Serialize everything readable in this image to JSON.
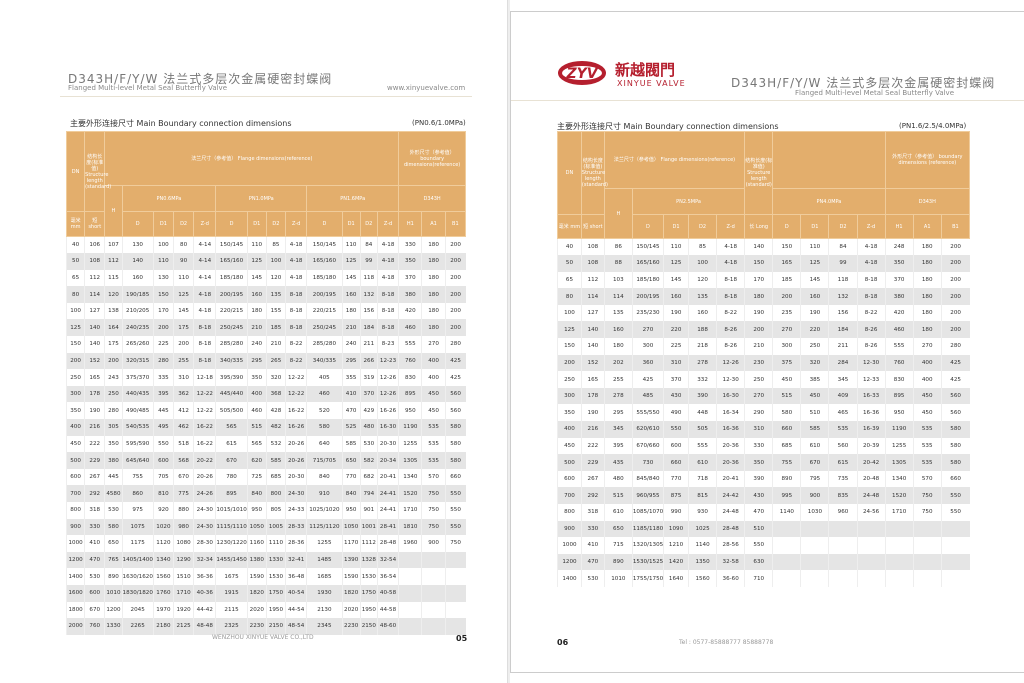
{
  "left": {
    "title": "D343H/F/Y/W 法兰式多层次金属硬密封蝶阀",
    "subtitle": "Flanged Multi-level Metal Seal Butterfly Valve",
    "website": "www.xinyuevalve.com",
    "section_title": "主要外形连接尺寸 Main Boundary connection dimensions",
    "pressure": "(PN0.6/1.0MPa)",
    "header": {
      "dn": "DN",
      "struct": "结构长度(标准值) Structure length (standard)",
      "flange": "法兰尺寸（参考值） Flange dimensions(reference)",
      "boundary": "外形尺寸（参考值） boundary dimensions(reference)",
      "h": "H",
      "pn1": "PN0.6MPa",
      "pn2": "PN1.0MPa",
      "pn3": "PN1.6MPa",
      "model": "D343H",
      "mm": "毫米 mm",
      "short": "短 short",
      "cols": [
        "D",
        "D1",
        "D2",
        "Z-d",
        "D",
        "D1",
        "D2",
        "Z-d",
        "D",
        "D1",
        "D2",
        "Z-d",
        "H1",
        "A1",
        "B1"
      ]
    },
    "rows": [
      [
        "40",
        "106",
        "107",
        "130",
        "100",
        "80",
        "4-14",
        "150/145",
        "110",
        "85",
        "4-18",
        "150/145",
        "110",
        "84",
        "4-18",
        "330",
        "180",
        "200"
      ],
      [
        "50",
        "108",
        "112",
        "140",
        "110",
        "90",
        "4-14",
        "165/160",
        "125",
        "100",
        "4-18",
        "165/160",
        "125",
        "99",
        "4-18",
        "350",
        "180",
        "200"
      ],
      [
        "65",
        "112",
        "115",
        "160",
        "130",
        "110",
        "4-14",
        "185/180",
        "145",
        "120",
        "4-18",
        "185/180",
        "145",
        "118",
        "4-18",
        "370",
        "180",
        "200"
      ],
      [
        "80",
        "114",
        "120",
        "190/185",
        "150",
        "125",
        "4-18",
        "200/195",
        "160",
        "135",
        "8-18",
        "200/195",
        "160",
        "132",
        "8-18",
        "380",
        "180",
        "200"
      ],
      [
        "100",
        "127",
        "138",
        "210/205",
        "170",
        "145",
        "4-18",
        "220/215",
        "180",
        "155",
        "8-18",
        "220/215",
        "180",
        "156",
        "8-18",
        "420",
        "180",
        "200"
      ],
      [
        "125",
        "140",
        "164",
        "240/235",
        "200",
        "175",
        "8-18",
        "250/245",
        "210",
        "185",
        "8-18",
        "250/245",
        "210",
        "184",
        "8-18",
        "460",
        "180",
        "200"
      ],
      [
        "150",
        "140",
        "175",
        "265/260",
        "225",
        "200",
        "8-18",
        "285/280",
        "240",
        "210",
        "8-22",
        "285/280",
        "240",
        "211",
        "8-23",
        "555",
        "270",
        "280"
      ],
      [
        "200",
        "152",
        "200",
        "320/315",
        "280",
        "255",
        "8-18",
        "340/335",
        "295",
        "265",
        "8-22",
        "340/335",
        "295",
        "266",
        "12-23",
        "760",
        "400",
        "425"
      ],
      [
        "250",
        "165",
        "243",
        "375/370",
        "335",
        "310",
        "12-18",
        "395/390",
        "350",
        "320",
        "12-22",
        "405",
        "355",
        "319",
        "12-26",
        "830",
        "400",
        "425"
      ],
      [
        "300",
        "178",
        "250",
        "440/435",
        "395",
        "362",
        "12-22",
        "445/440",
        "400",
        "368",
        "12-22",
        "460",
        "410",
        "370",
        "12-26",
        "895",
        "450",
        "560"
      ],
      [
        "350",
        "190",
        "280",
        "490/485",
        "445",
        "412",
        "12-22",
        "505/500",
        "460",
        "428",
        "16-22",
        "520",
        "470",
        "429",
        "16-26",
        "950",
        "450",
        "560"
      ],
      [
        "400",
        "216",
        "305",
        "540/535",
        "495",
        "462",
        "16-22",
        "565",
        "515",
        "482",
        "16-26",
        "580",
        "525",
        "480",
        "16-30",
        "1190",
        "535",
        "580"
      ],
      [
        "450",
        "222",
        "350",
        "595/590",
        "550",
        "518",
        "16-22",
        "615",
        "565",
        "532",
        "20-26",
        "640",
        "585",
        "530",
        "20-30",
        "1255",
        "535",
        "580"
      ],
      [
        "500",
        "229",
        "380",
        "645/640",
        "600",
        "568",
        "20-22",
        "670",
        "620",
        "585",
        "20-26",
        "715/705",
        "650",
        "582",
        "20-34",
        "1305",
        "535",
        "580"
      ],
      [
        "600",
        "267",
        "445",
        "755",
        "705",
        "670",
        "20-26",
        "780",
        "725",
        "685",
        "20-30",
        "840",
        "770",
        "682",
        "20-41",
        "1340",
        "570",
        "660"
      ],
      [
        "700",
        "292",
        "4580",
        "860",
        "810",
        "775",
        "24-26",
        "895",
        "840",
        "800",
        "24-30",
        "910",
        "840",
        "794",
        "24-41",
        "1520",
        "750",
        "550"
      ],
      [
        "800",
        "318",
        "530",
        "975",
        "920",
        "880",
        "24-30",
        "1015/1010",
        "950",
        "805",
        "24-33",
        "1025/1020",
        "950",
        "901",
        "24-41",
        "1710",
        "750",
        "550"
      ],
      [
        "900",
        "330",
        "580",
        "1075",
        "1020",
        "980",
        "24-30",
        "1115/1110",
        "1050",
        "1005",
        "28-33",
        "1125/1120",
        "1050",
        "1001",
        "28-41",
        "1810",
        "750",
        "550"
      ],
      [
        "1000",
        "410",
        "650",
        "1175",
        "1120",
        "1080",
        "28-30",
        "1230/1220",
        "1160",
        "1110",
        "28-36",
        "1255",
        "1170",
        "1112",
        "28-48",
        "1960",
        "900",
        "750"
      ],
      [
        "1200",
        "470",
        "765",
        "1405/1400",
        "1340",
        "1290",
        "32-34",
        "1455/1450",
        "1380",
        "1330",
        "32-41",
        "1485",
        "1390",
        "1328",
        "32-54",
        "",
        "",
        ""
      ],
      [
        "1400",
        "530",
        "890",
        "1630/1620",
        "1560",
        "1510",
        "36-36",
        "1675",
        "1590",
        "1530",
        "36-48",
        "1685",
        "1590",
        "1530",
        "36-54",
        "",
        "",
        ""
      ],
      [
        "1600",
        "600",
        "1010",
        "1830/1820",
        "1760",
        "1710",
        "40-36",
        "1915",
        "1820",
        "1750",
        "40-54",
        "1930",
        "1820",
        "1750",
        "40-58",
        "",
        "",
        ""
      ],
      [
        "1800",
        "670",
        "1200",
        "2045",
        "1970",
        "1920",
        "44-42",
        "2115",
        "2020",
        "1950",
        "44-54",
        "2130",
        "2020",
        "1950",
        "44-58",
        "",
        "",
        ""
      ],
      [
        "2000",
        "760",
        "1330",
        "2265",
        "2180",
        "2125",
        "48-48",
        "2325",
        "2230",
        "2150",
        "48-54",
        "2345",
        "2230",
        "2150",
        "48-60",
        "",
        "",
        ""
      ]
    ],
    "footer_company": "WENZHOU XINYUE VALVE CO.,LTD",
    "page_number": "05"
  },
  "right": {
    "logo_mark": "ZYV",
    "logo_cn": "新越閥門",
    "logo_en": "XINYUE VALVE",
    "title": "D343H/F/Y/W 法兰式多层次金属硬密封蝶阀",
    "subtitle": "Flanged Multi-level Metal Seal Butterfly Valve",
    "section_title": "主要外形连接尺寸 Main Boundary connection dimensions",
    "pressure": "(PN1.6/2.5/4.0MPa)",
    "header": {
      "dn": "DN",
      "struct": "结构长度(标准值) Structure length (standard)",
      "flange": "法兰尺寸（参考值） Flange dimensions(reference)",
      "struct_long": "结构长度(标准值) Structure length (standard)",
      "boundary": "外形尺寸（参考值） boundary dimensions (reference)",
      "h": "H",
      "pn1": "PN2.5MPa",
      "pn2": "PN4.0MPa",
      "model": "D343H",
      "mm": "毫米 mm",
      "short": "短 short",
      "long": "长 Long",
      "cols": [
        "D",
        "D1",
        "D2",
        "Z-d",
        "D",
        "D1",
        "D2",
        "Z-d",
        "H1",
        "A1",
        "B1"
      ]
    },
    "rows": [
      [
        "40",
        "108",
        "86",
        "150/145",
        "110",
        "85",
        "4-18",
        "140",
        "150",
        "110",
        "84",
        "4-18",
        "248",
        "180",
        "200"
      ],
      [
        "50",
        "108",
        "88",
        "165/160",
        "125",
        "100",
        "4-18",
        "150",
        "165",
        "125",
        "99",
        "4-18",
        "350",
        "180",
        "200"
      ],
      [
        "65",
        "112",
        "103",
        "185/180",
        "145",
        "120",
        "8-18",
        "170",
        "185",
        "145",
        "118",
        "8-18",
        "370",
        "180",
        "200"
      ],
      [
        "80",
        "114",
        "114",
        "200/195",
        "160",
        "135",
        "8-18",
        "180",
        "200",
        "160",
        "132",
        "8-18",
        "380",
        "180",
        "200"
      ],
      [
        "100",
        "127",
        "135",
        "235/230",
        "190",
        "160",
        "8-22",
        "190",
        "235",
        "190",
        "156",
        "8-22",
        "420",
        "180",
        "200"
      ],
      [
        "125",
        "140",
        "160",
        "270",
        "220",
        "188",
        "8-26",
        "200",
        "270",
        "220",
        "184",
        "8-26",
        "460",
        "180",
        "200"
      ],
      [
        "150",
        "140",
        "180",
        "300",
        "225",
        "218",
        "8-26",
        "210",
        "300",
        "250",
        "211",
        "8-26",
        "555",
        "270",
        "280"
      ],
      [
        "200",
        "152",
        "202",
        "360",
        "310",
        "278",
        "12-26",
        "230",
        "375",
        "320",
        "284",
        "12-30",
        "760",
        "400",
        "425"
      ],
      [
        "250",
        "165",
        "255",
        "425",
        "370",
        "332",
        "12-30",
        "250",
        "450",
        "385",
        "345",
        "12-33",
        "830",
        "400",
        "425"
      ],
      [
        "300",
        "178",
        "278",
        "485",
        "430",
        "390",
        "16-30",
        "270",
        "515",
        "450",
        "409",
        "16-33",
        "895",
        "450",
        "560"
      ],
      [
        "350",
        "190",
        "295",
        "555/550",
        "490",
        "448",
        "16-34",
        "290",
        "580",
        "510",
        "465",
        "16-36",
        "950",
        "450",
        "560"
      ],
      [
        "400",
        "216",
        "345",
        "620/610",
        "550",
        "505",
        "16-36",
        "310",
        "660",
        "585",
        "535",
        "16-39",
        "1190",
        "535",
        "580"
      ],
      [
        "450",
        "222",
        "395",
        "670/660",
        "600",
        "555",
        "20-36",
        "330",
        "685",
        "610",
        "560",
        "20-39",
        "1255",
        "535",
        "580"
      ],
      [
        "500",
        "229",
        "435",
        "730",
        "660",
        "610",
        "20-36",
        "350",
        "755",
        "670",
        "615",
        "20-42",
        "1305",
        "535",
        "580"
      ],
      [
        "600",
        "267",
        "480",
        "845/840",
        "770",
        "718",
        "20-41",
        "390",
        "890",
        "795",
        "735",
        "20-48",
        "1340",
        "570",
        "660"
      ],
      [
        "700",
        "292",
        "515",
        "960/955",
        "875",
        "815",
        "24-42",
        "430",
        "995",
        "900",
        "835",
        "24-48",
        "1520",
        "750",
        "550"
      ],
      [
        "800",
        "318",
        "610",
        "1085/1070",
        "990",
        "930",
        "24-48",
        "470",
        "1140",
        "1030",
        "960",
        "24-56",
        "1710",
        "750",
        "550"
      ],
      [
        "900",
        "330",
        "650",
        "1185/1180",
        "1090",
        "1025",
        "28-48",
        "510",
        "",
        "",
        "",
        "",
        "",
        "",
        ""
      ],
      [
        "1000",
        "410",
        "715",
        "1320/1305",
        "1210",
        "1140",
        "28-56",
        "550",
        "",
        "",
        "",
        "",
        "",
        "",
        ""
      ],
      [
        "1200",
        "470",
        "890",
        "1530/1525",
        "1420",
        "1350",
        "32-58",
        "630",
        "",
        "",
        "",
        "",
        "",
        "",
        ""
      ],
      [
        "1400",
        "530",
        "1010",
        "1755/1750",
        "1640",
        "1560",
        "36-60",
        "710",
        "",
        "",
        "",
        "",
        "",
        "",
        ""
      ]
    ],
    "footer_tel": "Tel : 0577-85888777  85888778",
    "page_number": "06"
  },
  "colors": {
    "header_bg": "#e3ae6c",
    "logo_red": "#b51f2e",
    "row_alt": "#e5e5e5"
  }
}
